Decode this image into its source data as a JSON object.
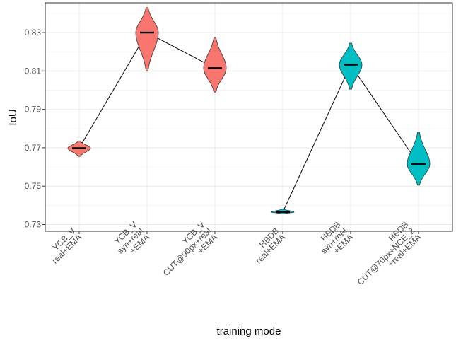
{
  "chart_data": {
    "type": "violin",
    "xlabel": "training mode",
    "ylabel": "IoU",
    "ylim": [
      0.7265,
      0.8455
    ],
    "y_ticks": [
      0.73,
      0.75,
      0.77,
      0.79,
      0.81,
      0.83
    ],
    "y_tick_labels": [
      "0.73",
      "0.75",
      "0.77",
      "0.79",
      "0.81",
      "0.83"
    ],
    "grid": true,
    "groups": [
      {
        "category": [
          "YCB_V",
          "real+EMA"
        ],
        "median": 0.7698,
        "min": 0.7655,
        "max": 0.7735,
        "color": "#F8766D"
      },
      {
        "category": [
          "YCB_V",
          "syn+real",
          "+EMA"
        ],
        "median": 0.83,
        "min": 0.81,
        "max": 0.843,
        "color": "#F8766D"
      },
      {
        "category": [
          "YCB_V",
          "CUT@90px+real",
          "+EMA"
        ],
        "median": 0.8115,
        "min": 0.799,
        "max": 0.8275,
        "color": "#F8766D"
      },
      {
        "category": [
          "HBDB",
          "real+EMA"
        ],
        "median": 0.7365,
        "min": 0.7355,
        "max": 0.738,
        "color": "#00BFC4"
      },
      {
        "category": [
          "HBDB",
          "syn+real",
          "+EMA"
        ],
        "median": 0.8132,
        "min": 0.8005,
        "max": 0.8245,
        "color": "#00BFC4"
      },
      {
        "category": [
          "HBDB",
          "CUT@70px+NCE_2",
          "+real+EMA"
        ],
        "median": 0.7615,
        "min": 0.7505,
        "max": 0.778,
        "color": "#00BFC4"
      }
    ],
    "connections": [
      [
        0,
        1
      ],
      [
        1,
        2
      ],
      [
        3,
        4
      ],
      [
        4,
        5
      ]
    ]
  }
}
